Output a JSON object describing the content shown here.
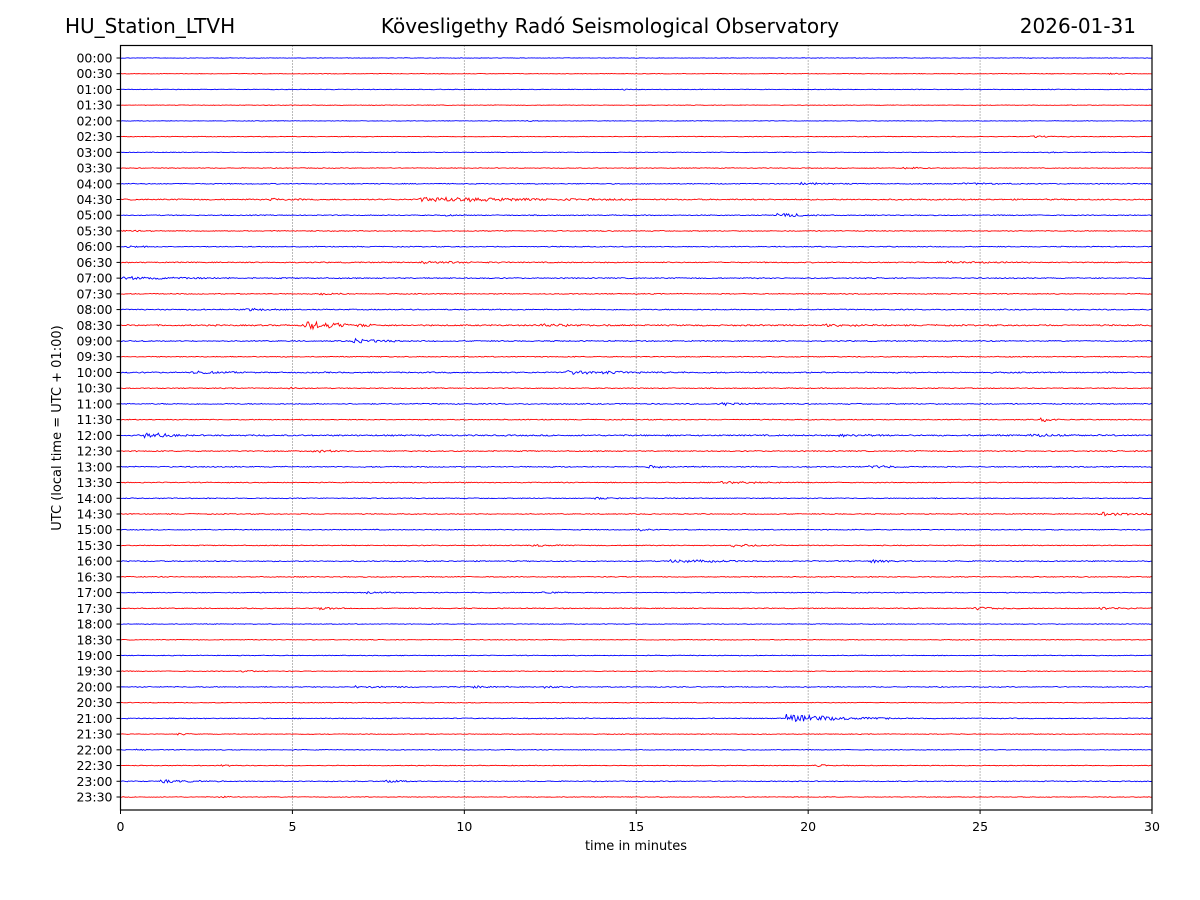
{
  "header": {
    "station": "HU_Station_LTVH",
    "observatory": "Kövesligethy Radó Seismological Observatory",
    "date": "2026-01-31"
  },
  "chart_data": {
    "type": "line",
    "title": "Kövesligethy Radó Seismological Observatory",
    "xlabel": "time in minutes",
    "ylabel": "UTC (local time = UTC + 01:00)",
    "xlim": [
      0,
      30
    ],
    "x_ticks": [
      "0",
      "5",
      "10",
      "15",
      "20",
      "25",
      "30"
    ],
    "x_tick_values": [
      0,
      5,
      10,
      15,
      20,
      25,
      30
    ],
    "grid": "vertical dotted at x ticks",
    "colors": {
      "even_trace": "#0000ff",
      "odd_trace": "#ff0000",
      "grid": "#555555"
    },
    "rows": [
      {
        "label": "00:00",
        "color": "blue",
        "noise": 0.3,
        "events": []
      },
      {
        "label": "00:30",
        "color": "red",
        "noise": 0.3,
        "events": [
          {
            "t": 28.8,
            "amp": 0.6,
            "dur": 0.8
          }
        ]
      },
      {
        "label": "01:00",
        "color": "blue",
        "noise": 0.35,
        "events": [
          {
            "t": 14.6,
            "amp": 0.6,
            "dur": 0.6
          }
        ]
      },
      {
        "label": "01:30",
        "color": "red",
        "noise": 0.3,
        "events": []
      },
      {
        "label": "02:00",
        "color": "blue",
        "noise": 0.3,
        "events": [
          {
            "t": 11.8,
            "amp": 0.5,
            "dur": 0.5
          }
        ]
      },
      {
        "label": "02:30",
        "color": "red",
        "noise": 0.35,
        "events": [
          {
            "t": 26.5,
            "amp": 1.0,
            "dur": 1.2
          }
        ]
      },
      {
        "label": "03:00",
        "color": "blue",
        "noise": 0.35,
        "events": [
          {
            "t": 27.0,
            "amp": 0.7,
            "dur": 0.3
          }
        ]
      },
      {
        "label": "03:30",
        "color": "red",
        "noise": 0.4,
        "events": [
          {
            "t": 22.8,
            "amp": 1.0,
            "dur": 1.0
          }
        ]
      },
      {
        "label": "04:00",
        "color": "blue",
        "noise": 0.5,
        "events": [
          {
            "t": 19.8,
            "amp": 1.2,
            "dur": 1.5
          },
          {
            "t": 24.5,
            "amp": 1.0,
            "dur": 2.0
          }
        ]
      },
      {
        "label": "04:30",
        "color": "red",
        "noise": 0.7,
        "events": [
          {
            "t": 8.7,
            "amp": 2.6,
            "dur": 6.3
          },
          {
            "t": 4.3,
            "amp": 1.0,
            "dur": 1.2
          }
        ]
      },
      {
        "label": "05:00",
        "color": "blue",
        "noise": 0.5,
        "events": [
          {
            "t": 19.1,
            "amp": 2.2,
            "dur": 1.5
          },
          {
            "t": 9.5,
            "amp": 0.8,
            "dur": 0.3
          }
        ]
      },
      {
        "label": "05:30",
        "color": "red",
        "noise": 0.5,
        "events": [
          {
            "t": 0.1,
            "amp": 1.0,
            "dur": 0.8
          }
        ]
      },
      {
        "label": "06:00",
        "color": "blue",
        "noise": 0.5,
        "events": [
          {
            "t": 0.2,
            "amp": 1.0,
            "dur": 0.8
          }
        ]
      },
      {
        "label": "06:30",
        "color": "red",
        "noise": 0.6,
        "events": [
          {
            "t": 8.8,
            "amp": 1.2,
            "dur": 2.5
          },
          {
            "t": 24.0,
            "amp": 1.0,
            "dur": 2.5
          }
        ]
      },
      {
        "label": "07:00",
        "color": "blue",
        "noise": 0.6,
        "events": [
          {
            "t": 0.1,
            "amp": 1.5,
            "dur": 3.2
          }
        ]
      },
      {
        "label": "07:30",
        "color": "red",
        "noise": 0.5,
        "events": [
          {
            "t": 5.8,
            "amp": 0.9,
            "dur": 1.0
          }
        ]
      },
      {
        "label": "08:00",
        "color": "blue",
        "noise": 0.6,
        "events": [
          {
            "t": 3.7,
            "amp": 1.2,
            "dur": 1.2
          }
        ]
      },
      {
        "label": "08:30",
        "color": "red",
        "noise": 0.8,
        "events": [
          {
            "t": 5.4,
            "amp": 5.0,
            "dur": 2.0
          },
          {
            "t": 12.2,
            "amp": 1.3,
            "dur": 2.0
          },
          {
            "t": 20.5,
            "amp": 1.2,
            "dur": 1.5
          }
        ]
      },
      {
        "label": "09:00",
        "color": "blue",
        "noise": 0.6,
        "events": [
          {
            "t": 6.8,
            "amp": 2.0,
            "dur": 1.5
          }
        ]
      },
      {
        "label": "09:30",
        "color": "red",
        "noise": 0.5,
        "events": []
      },
      {
        "label": "10:00",
        "color": "blue",
        "noise": 0.7,
        "events": [
          {
            "t": 2.1,
            "amp": 1.5,
            "dur": 1.3
          },
          {
            "t": 13.0,
            "amp": 1.8,
            "dur": 3.5
          }
        ]
      },
      {
        "label": "10:30",
        "color": "red",
        "noise": 0.5,
        "events": [
          {
            "t": 4.9,
            "amp": 0.8,
            "dur": 0.5
          }
        ]
      },
      {
        "label": "11:00",
        "color": "blue",
        "noise": 0.6,
        "events": [
          {
            "t": 17.4,
            "amp": 1.6,
            "dur": 1.2
          }
        ]
      },
      {
        "label": "11:30",
        "color": "red",
        "noise": 0.5,
        "events": [
          {
            "t": 26.8,
            "amp": 1.8,
            "dur": 0.6
          }
        ]
      },
      {
        "label": "12:00",
        "color": "blue",
        "noise": 0.8,
        "events": [
          {
            "t": 0.7,
            "amp": 2.8,
            "dur": 1.3
          },
          {
            "t": 20.9,
            "amp": 1.5,
            "dur": 1.5
          },
          {
            "t": 26.5,
            "amp": 1.2,
            "dur": 2.0
          }
        ]
      },
      {
        "label": "12:30",
        "color": "red",
        "noise": 0.6,
        "events": [
          {
            "t": 5.6,
            "amp": 1.6,
            "dur": 1.0
          }
        ]
      },
      {
        "label": "13:00",
        "color": "blue",
        "noise": 0.6,
        "events": [
          {
            "t": 15.4,
            "amp": 1.2,
            "dur": 0.6
          },
          {
            "t": 21.8,
            "amp": 1.5,
            "dur": 1.2
          }
        ]
      },
      {
        "label": "13:30",
        "color": "red",
        "noise": 0.5,
        "events": [
          {
            "t": 17.5,
            "amp": 1.2,
            "dur": 2.0
          }
        ]
      },
      {
        "label": "14:00",
        "color": "blue",
        "noise": 0.5,
        "events": [
          {
            "t": 13.8,
            "amp": 1.0,
            "dur": 0.8
          }
        ]
      },
      {
        "label": "14:30",
        "color": "red",
        "noise": 0.5,
        "events": [
          {
            "t": 28.5,
            "amp": 2.5,
            "dur": 1.5
          }
        ]
      },
      {
        "label": "15:00",
        "color": "blue",
        "noise": 0.5,
        "events": [
          {
            "t": 15.0,
            "amp": 0.9,
            "dur": 0.8
          }
        ]
      },
      {
        "label": "15:30",
        "color": "red",
        "noise": 0.5,
        "events": [
          {
            "t": 12.0,
            "amp": 1.2,
            "dur": 1.0
          },
          {
            "t": 17.8,
            "amp": 1.3,
            "dur": 1.8
          }
        ]
      },
      {
        "label": "16:00",
        "color": "blue",
        "noise": 0.6,
        "events": [
          {
            "t": 16.0,
            "amp": 1.8,
            "dur": 2.5
          },
          {
            "t": 21.8,
            "amp": 1.3,
            "dur": 1.2
          }
        ]
      },
      {
        "label": "16:30",
        "color": "red",
        "noise": 0.5,
        "events": []
      },
      {
        "label": "17:00",
        "color": "blue",
        "noise": 0.5,
        "events": [
          {
            "t": 7.2,
            "amp": 1.2,
            "dur": 1.0
          },
          {
            "t": 12.3,
            "amp": 1.0,
            "dur": 0.8
          }
        ]
      },
      {
        "label": "17:30",
        "color": "red",
        "noise": 0.5,
        "events": [
          {
            "t": 5.8,
            "amp": 1.4,
            "dur": 0.8
          },
          {
            "t": 24.8,
            "amp": 1.4,
            "dur": 1.5
          },
          {
            "t": 28.5,
            "amp": 1.2,
            "dur": 1.5
          }
        ]
      },
      {
        "label": "18:00",
        "color": "blue",
        "noise": 0.4,
        "events": []
      },
      {
        "label": "18:30",
        "color": "red",
        "noise": 0.4,
        "events": []
      },
      {
        "label": "19:00",
        "color": "blue",
        "noise": 0.4,
        "events": []
      },
      {
        "label": "19:30",
        "color": "red",
        "noise": 0.4,
        "events": [
          {
            "t": 3.5,
            "amp": 0.9,
            "dur": 0.8
          }
        ]
      },
      {
        "label": "20:00",
        "color": "blue",
        "noise": 0.5,
        "events": [
          {
            "t": 6.8,
            "amp": 1.2,
            "dur": 2.0
          },
          {
            "t": 10.3,
            "amp": 1.0,
            "dur": 1.0
          },
          {
            "t": 12.3,
            "amp": 1.0,
            "dur": 1.0
          }
        ]
      },
      {
        "label": "20:30",
        "color": "red",
        "noise": 0.4,
        "events": []
      },
      {
        "label": "21:00",
        "color": "blue",
        "noise": 0.5,
        "events": [
          {
            "t": 19.4,
            "amp": 4.5,
            "dur": 3.0
          }
        ]
      },
      {
        "label": "21:30",
        "color": "red",
        "noise": 0.4,
        "events": [
          {
            "t": 1.7,
            "amp": 0.7,
            "dur": 0.4
          }
        ]
      },
      {
        "label": "22:00",
        "color": "blue",
        "noise": 0.4,
        "events": [
          {
            "t": 0.4,
            "amp": 0.8,
            "dur": 0.4
          }
        ]
      },
      {
        "label": "22:30",
        "color": "red",
        "noise": 0.4,
        "events": [
          {
            "t": 2.9,
            "amp": 0.9,
            "dur": 0.6
          },
          {
            "t": 20.2,
            "amp": 1.0,
            "dur": 1.0
          }
        ]
      },
      {
        "label": "23:00",
        "color": "blue",
        "noise": 0.5,
        "events": [
          {
            "t": 1.2,
            "amp": 1.4,
            "dur": 1.8
          },
          {
            "t": 7.7,
            "amp": 1.2,
            "dur": 1.0
          }
        ]
      },
      {
        "label": "23:30",
        "color": "red",
        "noise": 0.4,
        "events": [
          {
            "t": 2.9,
            "amp": 0.7,
            "dur": 0.8
          }
        ]
      }
    ]
  }
}
